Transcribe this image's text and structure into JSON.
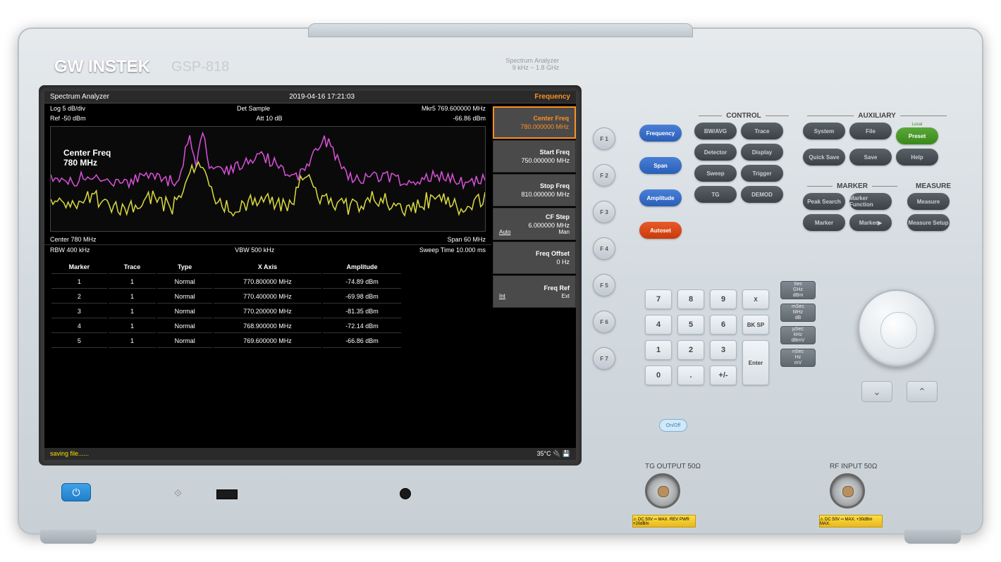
{
  "brand": "GW INSTEK",
  "model": "GSP-818",
  "device_type": "Spectrum Analyzer",
  "freq_range": "9 kHz ~ 1.8 GHz",
  "screen": {
    "title": "Spectrum Analyzer",
    "datetime": "2019-04-16 17:21:03",
    "mode": "Frequency",
    "log_scale": "Log 5 dB/div",
    "det": "Det Sample",
    "mkr": "Mkr5  769.600000 MHz",
    "ref": "Ref -50 dBm",
    "att": "Att 10 dB",
    "mkr_amp": "-66.86 dBm",
    "center_freq_label": "Center Freq",
    "center_freq_val": "780 MHz",
    "center": "Center 780 MHz",
    "span": "Span 60 MHz",
    "rbw": "RBW 400 kHz",
    "vbw": "VBW 500 kHz",
    "sweep": "Sweep Time 10.000 ms",
    "status": "saving file......",
    "temp": "35°C"
  },
  "menu": [
    {
      "label": "Center Freq",
      "value": "780.000000 MHz",
      "active": true
    },
    {
      "label": "Start Freq",
      "value": "750.000000 MHz"
    },
    {
      "label": "Stop Freq",
      "value": "810.000000 MHz"
    },
    {
      "label": "CF Step",
      "value": "6.000000 MHz",
      "sub1": "Auto",
      "sub2": "Man"
    },
    {
      "label": "Freq Offset",
      "value": "0 Hz"
    },
    {
      "label": "Freq Ref",
      "sub1": "Int",
      "sub2": "Ext"
    }
  ],
  "markers": {
    "headers": [
      "Marker",
      "Trace",
      "Type",
      "X Axis",
      "Amplitude"
    ],
    "rows": [
      [
        "1",
        "1",
        "Normal",
        "770.800000 MHz",
        "-74.89 dBm"
      ],
      [
        "2",
        "1",
        "Normal",
        "770.400000 MHz",
        "-69.98 dBm"
      ],
      [
        "3",
        "1",
        "Normal",
        "770.200000 MHz",
        "-81.35 dBm"
      ],
      [
        "4",
        "1",
        "Normal",
        "768.900000 MHz",
        "-72.14 dBm"
      ],
      [
        "5",
        "1",
        "Normal",
        "769.600000 MHz",
        "-66.86 dBm"
      ]
    ]
  },
  "softkeys": [
    "F 1",
    "F 2",
    "F 3",
    "F 4",
    "F 5",
    "F 6",
    "F 7"
  ],
  "left_buttons": [
    "Frequency",
    "Span",
    "Amplitude",
    "Autoset"
  ],
  "control": {
    "label": "CONTROL",
    "rows": [
      [
        "BW/AVG",
        "Trace"
      ],
      [
        "Detector",
        "Display"
      ],
      [
        "Sweep",
        "Trigger"
      ],
      [
        "TG",
        "DEMOD"
      ]
    ]
  },
  "auxiliary": {
    "label": "AUXILIARY",
    "rows": [
      [
        "System",
        "File",
        "Preset"
      ],
      [
        "Quick Save",
        "Save",
        "Help"
      ]
    ]
  },
  "marker_sec": {
    "label": "MARKER",
    "rows": [
      [
        "Peak Search",
        "Marker Function"
      ],
      [
        "Marker",
        "Marker▶"
      ]
    ]
  },
  "measure_sec": {
    "label": "MEASURE",
    "rows": [
      [
        "Measure"
      ],
      [
        "Measure Setup"
      ]
    ]
  },
  "keypad": [
    "7",
    "8",
    "9",
    "X",
    "4",
    "5",
    "6",
    "BK SP",
    "1",
    "2",
    "3",
    "Enter",
    "0",
    ".",
    "+/-"
  ],
  "unit_keys": [
    [
      "Sec",
      "GHz",
      "dBm"
    ],
    [
      "mSec",
      "MHz",
      "dB"
    ],
    [
      "μSec",
      "kHz",
      "dBmV"
    ],
    [
      "nSec",
      "Hz",
      "mV"
    ]
  ],
  "ports": {
    "tg": "TG OUTPUT 50Ω",
    "rf": "RF INPUT 50Ω",
    "onoff": "On/Off"
  },
  "warnings": {
    "tg": "⚠ DC 50V ═ MAX. REV PWR +20dBm",
    "rf": "⚠ DC 50V ═ MAX. +30dBm MAX."
  },
  "preset_top": "Local",
  "colors": {
    "trace1": "#d8d840",
    "trace2": "#d850d8",
    "accent": "#ff9020",
    "btn_blue": "#3a6fc8",
    "btn_gray": "#4a5258",
    "btn_orange": "#d84a1a",
    "btn_green": "#4a982a"
  }
}
